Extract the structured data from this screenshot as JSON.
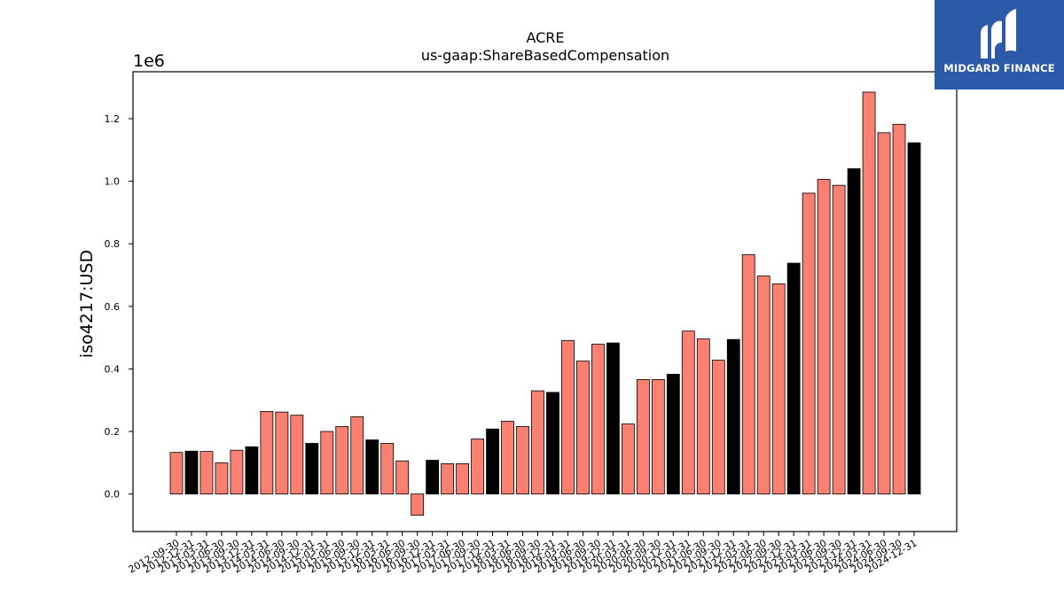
{
  "chart_data": {
    "type": "bar",
    "title": "ACRE",
    "subtitle": "us-gaap:ShareBasedCompensation",
    "ylabel": "iso4217:USD",
    "xlabel": "",
    "offset_label": "1e6",
    "ylim": [
      -120000,
      1350000
    ],
    "yticks": [
      0.0,
      0.2,
      0.4,
      0.6,
      0.8,
      1.0,
      1.2
    ],
    "grid": false,
    "colors": {
      "quarter": "#fa8072",
      "year_end": "#000000",
      "edge": "#000000"
    },
    "categories": [
      "2012-09-30",
      "2012-12-31",
      "2013-03-31",
      "2013-06-30",
      "2013-09-30",
      "2013-12-31",
      "2014-03-31",
      "2014-06-30",
      "2014-09-30",
      "2014-12-31",
      "2015-03-31",
      "2015-06-30",
      "2015-09-30",
      "2015-12-31",
      "2016-03-31",
      "2016-06-30",
      "2016-09-30",
      "2016-12-31",
      "2017-03-31",
      "2017-06-30",
      "2017-09-30",
      "2017-12-31",
      "2018-03-31",
      "2018-06-30",
      "2018-09-30",
      "2018-12-31",
      "2019-03-31",
      "2019-06-30",
      "2019-09-30",
      "2019-12-31",
      "2020-03-31",
      "2020-06-30",
      "2020-09-30",
      "2020-12-31",
      "2021-03-31",
      "2021-06-30",
      "2021-09-30",
      "2021-12-31",
      "2022-03-31",
      "2022-06-30",
      "2022-09-30",
      "2022-12-31",
      "2023-03-31",
      "2023-06-30",
      "2023-09-30",
      "2023-12-31",
      "2024-03-31",
      "2024-06-30",
      "2024-09-30",
      "2024-12-31"
    ],
    "values": [
      133000,
      137000,
      136000,
      100000,
      140000,
      151000,
      264000,
      262000,
      252000,
      162000,
      200000,
      216000,
      247000,
      173000,
      162000,
      106000,
      -68000,
      108000,
      97000,
      97000,
      176000,
      208000,
      233000,
      216000,
      330000,
      325000,
      491000,
      425000,
      479000,
      483000,
      224000,
      366000,
      366000,
      383000,
      521000,
      496000,
      428000,
      494000,
      765000,
      697000,
      672000,
      738000,
      962000,
      1006000,
      987000,
      1040000,
      1285000,
      1155000,
      1182000,
      1123000
    ],
    "year_end": [
      false,
      true,
      false,
      false,
      false,
      true,
      false,
      false,
      false,
      true,
      false,
      false,
      false,
      true,
      false,
      false,
      false,
      true,
      false,
      false,
      false,
      true,
      false,
      false,
      false,
      true,
      false,
      false,
      false,
      true,
      false,
      false,
      false,
      true,
      false,
      false,
      false,
      true,
      false,
      false,
      false,
      true,
      false,
      false,
      false,
      true,
      false,
      false,
      false,
      true
    ]
  },
  "logo": {
    "text": "MIDGARD FINANCE",
    "icon": "midgard-logo-icon",
    "background": "#2c5aa8"
  }
}
